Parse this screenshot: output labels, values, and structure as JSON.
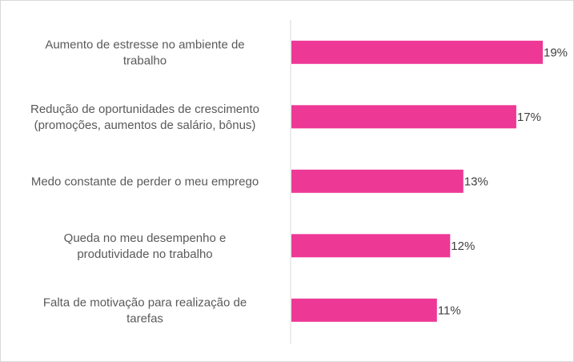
{
  "chart_data": {
    "type": "bar",
    "orientation": "horizontal",
    "title": "",
    "xlabel": "",
    "ylabel": "",
    "categories": [
      [
        "Aumento de estresse no ambiente de",
        "trabalho"
      ],
      [
        "Redução de oportunidades de crescimento",
        "(promoções, aumentos de salário, bônus)"
      ],
      [
        "Medo constante de perder o meu emprego"
      ],
      [
        "Queda no meu desempenho e",
        "produtividade no trabalho"
      ],
      [
        "Falta de motivação para realização de",
        "tarefas"
      ]
    ],
    "values": [
      19,
      17,
      13,
      12,
      11
    ],
    "value_labels": [
      "19%",
      "17%",
      "13%",
      "12%",
      "11%"
    ],
    "xlim": [
      0,
      20
    ],
    "grid": false,
    "legend": "none",
    "bar_color": "#ee3896",
    "axis_color": "#d9d9d9"
  }
}
